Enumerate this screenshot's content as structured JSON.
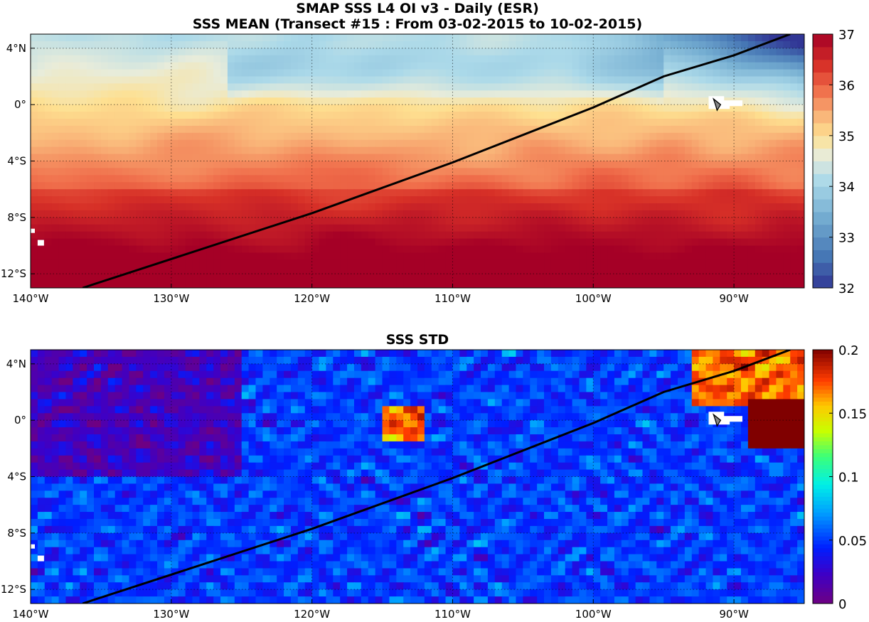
{
  "title_line1": "SMAP SSS L4 OI v3 - Daily (ESR)",
  "title_line2": "SSS MEAN (Transect #15 : From 03-02-2015 to 10-02-2015)",
  "lat_ticks": [
    "4°N",
    "0°",
    "4°S",
    "8°S",
    "12°S"
  ],
  "lon_ticks": [
    "140°W",
    "130°W",
    "120°W",
    "110°W",
    "100°W",
    "90°W"
  ],
  "chart_data": [
    {
      "type": "heatmap",
      "title": "SSS MEAN (Transect #15 : From 03-02-2015 to 10-02-2015)",
      "colormap": "RdYlBu_r",
      "colorbar": {
        "range": [
          32,
          37
        ],
        "ticks": [
          "32",
          "33",
          "34",
          "35",
          "36",
          "37"
        ]
      },
      "lon_range": [
        -140,
        -85
      ],
      "lat_range": [
        -13,
        5
      ],
      "transect": {
        "lon": [
          -136.3,
          -120,
          -110,
          -100,
          -95,
          -90,
          -86
        ],
        "lat": [
          -13,
          -7.7,
          -4.1,
          -0.2,
          2,
          3.5,
          5
        ]
      }
    },
    {
      "type": "heatmap",
      "title": "SSS STD",
      "colormap": "jet",
      "colorbar": {
        "range": [
          0,
          0.2
        ],
        "ticks": [
          "0",
          "0.05",
          "0.1",
          "0.15",
          "0.2"
        ]
      },
      "lon_range": [
        -140,
        -85
      ],
      "lat_range": [
        -13,
        5
      ],
      "transect": {
        "lon": [
          -136.3,
          -120,
          -110,
          -100,
          -95,
          -90,
          -86
        ],
        "lat": [
          -13,
          -7.7,
          -4.1,
          -0.2,
          2,
          3.5,
          5
        ]
      }
    }
  ]
}
